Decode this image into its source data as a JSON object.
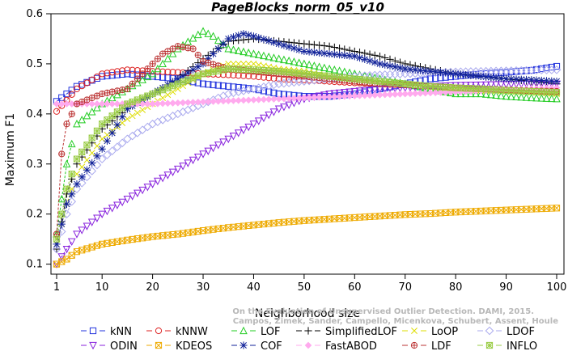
{
  "chart_data": {
    "type": "line",
    "title": "PageBlocks_norm_05_v10",
    "xlabel": "Neighborhood size",
    "ylabel": "Maximum F1",
    "xlim": [
      1,
      100
    ],
    "ylim": [
      0.08,
      0.6
    ],
    "xticks": [
      1,
      10,
      20,
      30,
      40,
      50,
      60,
      70,
      80,
      90,
      100
    ],
    "yticks": [
      0.1,
      0.2,
      0.3,
      0.4,
      0.5,
      0.6
    ],
    "watermark": [
      "Campos, Zimek, Sander, Campello, Micenkova, Schubert, Assent, Houle",
      "On the Evaluation of Unsupervised Outlier Detection. DAMI, 2015."
    ],
    "grid": false,
    "legend_position": "bottom",
    "series": [
      {
        "name": "kNN",
        "color": "#2233dd",
        "marker": "square",
        "x": [
          1,
          5,
          10,
          15,
          20,
          25,
          30,
          35,
          40,
          45,
          50,
          55,
          60,
          65,
          70,
          75,
          80,
          85,
          90,
          95,
          100
        ],
        "y": [
          0.425,
          0.455,
          0.475,
          0.48,
          0.475,
          0.47,
          0.46,
          0.455,
          0.45,
          0.44,
          0.435,
          0.435,
          0.44,
          0.45,
          0.46,
          0.47,
          0.475,
          0.48,
          0.483,
          0.487,
          0.495
        ]
      },
      {
        "name": "kNNW",
        "color": "#dd2222",
        "marker": "circle",
        "x": [
          1,
          5,
          10,
          15,
          20,
          25,
          30,
          35,
          40,
          45,
          50,
          55,
          60,
          65,
          70,
          75,
          80,
          85,
          90,
          95,
          100
        ],
        "y": [
          0.405,
          0.45,
          0.48,
          0.488,
          0.485,
          0.483,
          0.48,
          0.478,
          0.475,
          0.47,
          0.468,
          0.465,
          0.462,
          0.46,
          0.458,
          0.455,
          0.452,
          0.45,
          0.448,
          0.446,
          0.443
        ]
      },
      {
        "name": "LOF",
        "color": "#22cc22",
        "marker": "triangle-up",
        "x": [
          1,
          3,
          5,
          10,
          15,
          20,
          25,
          30,
          32,
          35,
          40,
          45,
          50,
          55,
          60,
          65,
          70,
          75,
          80,
          85,
          90,
          95,
          100
        ],
        "y": [
          0.16,
          0.3,
          0.38,
          0.42,
          0.45,
          0.48,
          0.53,
          0.565,
          0.555,
          0.53,
          0.52,
          0.51,
          0.5,
          0.49,
          0.48,
          0.47,
          0.46,
          0.45,
          0.44,
          0.44,
          0.435,
          0.432,
          0.43
        ]
      },
      {
        "name": "SimplifiedLOF",
        "color": "#000000",
        "marker": "plus",
        "x": [
          1,
          3,
          5,
          10,
          15,
          20,
          25,
          30,
          35,
          40,
          45,
          50,
          55,
          60,
          65,
          70,
          75,
          80,
          85,
          90,
          95,
          100
        ],
        "y": [
          0.13,
          0.24,
          0.3,
          0.37,
          0.41,
          0.44,
          0.47,
          0.51,
          0.545,
          0.55,
          0.545,
          0.54,
          0.535,
          0.525,
          0.515,
          0.5,
          0.49,
          0.48,
          0.475,
          0.47,
          0.465,
          0.46
        ]
      },
      {
        "name": "LoOP",
        "color": "#dddd00",
        "marker": "x",
        "x": [
          1,
          3,
          5,
          10,
          15,
          20,
          25,
          30,
          35,
          40,
          45,
          50,
          55,
          60,
          65,
          70,
          75,
          80,
          85,
          90,
          95,
          100
        ],
        "y": [
          0.14,
          0.22,
          0.28,
          0.35,
          0.39,
          0.42,
          0.45,
          0.48,
          0.5,
          0.5,
          0.49,
          0.485,
          0.475,
          0.47,
          0.465,
          0.46,
          0.455,
          0.45,
          0.447,
          0.445,
          0.443,
          0.44
        ]
      },
      {
        "name": "LDOF",
        "color": "#aaaaee",
        "marker": "diamond",
        "x": [
          1,
          3,
          5,
          10,
          15,
          20,
          25,
          30,
          35,
          40,
          45,
          50,
          55,
          60,
          65,
          70,
          75,
          80,
          85,
          90,
          95,
          100
        ],
        "y": [
          0.13,
          0.2,
          0.25,
          0.31,
          0.35,
          0.38,
          0.4,
          0.42,
          0.44,
          0.45,
          0.46,
          0.465,
          0.47,
          0.475,
          0.478,
          0.48,
          0.482,
          0.484,
          0.485,
          0.486,
          0.487,
          0.488
        ]
      },
      {
        "name": "ODIN",
        "color": "#8822dd",
        "marker": "triangle-down",
        "x": [
          1,
          3,
          5,
          10,
          15,
          20,
          25,
          30,
          35,
          40,
          45,
          50,
          55,
          60,
          65,
          70,
          75,
          80,
          85,
          90,
          95,
          100
        ],
        "y": [
          0.1,
          0.13,
          0.16,
          0.2,
          0.23,
          0.26,
          0.29,
          0.32,
          0.35,
          0.38,
          0.41,
          0.43,
          0.44,
          0.445,
          0.45,
          0.452,
          0.455,
          0.457,
          0.458,
          0.459,
          0.46,
          0.46
        ]
      },
      {
        "name": "KDEOS",
        "color": "#eeaa00",
        "marker": "square-x",
        "x": [
          1,
          3,
          5,
          10,
          15,
          20,
          25,
          30,
          35,
          40,
          45,
          50,
          55,
          60,
          65,
          70,
          75,
          80,
          85,
          90,
          95,
          100
        ],
        "y": [
          0.1,
          0.11,
          0.125,
          0.14,
          0.148,
          0.155,
          0.16,
          0.167,
          0.173,
          0.178,
          0.183,
          0.187,
          0.19,
          0.193,
          0.196,
          0.199,
          0.201,
          0.204,
          0.206,
          0.208,
          0.21,
          0.212
        ]
      },
      {
        "name": "COF",
        "color": "#112299",
        "marker": "asterisk",
        "x": [
          1,
          3,
          5,
          10,
          15,
          20,
          25,
          30,
          35,
          38,
          40,
          45,
          50,
          55,
          60,
          65,
          70,
          75,
          80,
          85,
          90,
          95,
          100
        ],
        "y": [
          0.14,
          0.22,
          0.26,
          0.33,
          0.41,
          0.44,
          0.47,
          0.5,
          0.55,
          0.56,
          0.555,
          0.54,
          0.525,
          0.52,
          0.515,
          0.5,
          0.49,
          0.485,
          0.48,
          0.475,
          0.47,
          0.468,
          0.465
        ]
      },
      {
        "name": "FastABOD",
        "color": "#ffaaee",
        "marker": "diamond-filled",
        "x": [
          1,
          5,
          10,
          15,
          20,
          25,
          30,
          35,
          40,
          45,
          50,
          55,
          60,
          65,
          70,
          75,
          80,
          85,
          90,
          95,
          100
        ],
        "y": [
          0.42,
          0.42,
          0.42,
          0.42,
          0.42,
          0.422,
          0.424,
          0.426,
          0.428,
          0.43,
          0.432,
          0.434,
          0.436,
          0.438,
          0.44,
          0.442,
          0.444,
          0.446,
          0.448,
          0.45,
          0.452
        ]
      },
      {
        "name": "LDF",
        "color": "#bb3333",
        "marker": "circle-plus",
        "x": [
          1,
          2,
          3,
          4,
          5,
          10,
          15,
          20,
          22,
          25,
          28,
          30,
          35,
          40,
          45,
          50,
          55,
          60,
          65,
          70,
          75,
          80,
          85,
          90,
          95,
          100
        ],
        "y": [
          0.16,
          0.32,
          0.38,
          0.4,
          0.42,
          0.44,
          0.45,
          0.5,
          0.52,
          0.535,
          0.53,
          0.505,
          0.49,
          0.485,
          0.48,
          0.475,
          0.47,
          0.465,
          0.46,
          0.458,
          0.455,
          0.452,
          0.45,
          0.448,
          0.446,
          0.445
        ]
      },
      {
        "name": "INFLO",
        "color": "#99cc44",
        "marker": "square-star",
        "x": [
          1,
          3,
          5,
          10,
          15,
          20,
          25,
          30,
          35,
          40,
          45,
          50,
          55,
          60,
          65,
          70,
          75,
          80,
          85,
          90,
          95,
          100
        ],
        "y": [
          0.15,
          0.25,
          0.31,
          0.38,
          0.42,
          0.44,
          0.46,
          0.48,
          0.49,
          0.488,
          0.485,
          0.48,
          0.475,
          0.47,
          0.465,
          0.46,
          0.455,
          0.452,
          0.45,
          0.447,
          0.445,
          0.443
        ]
      }
    ]
  }
}
